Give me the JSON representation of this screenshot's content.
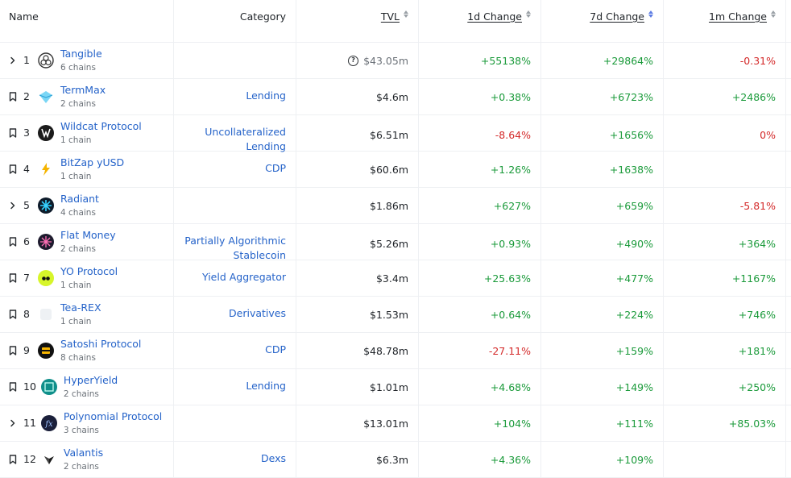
{
  "header": {
    "name": "Name",
    "category": "Category",
    "tvl": "TVL",
    "change_1d": "1d Change",
    "change_7d": "7d Change",
    "change_1m": "1m Change"
  },
  "rows": [
    {
      "rank": "1",
      "control": "expand",
      "name": "Tangible",
      "chains": "6 chains",
      "category": [
        "",
        ""
      ],
      "tvl": "$43.05m",
      "tvl_unknown": true,
      "d1": "+55138%",
      "d1c": "green",
      "d7": "+29864%",
      "d7c": "green",
      "m1": "-0.31%",
      "m1c": "red",
      "logo_color": "#ffffff",
      "logo_icon": "tangible-logo"
    },
    {
      "rank": "2",
      "control": "bookmark",
      "name": "TermMax",
      "chains": "2 chains",
      "category": [
        "Lending",
        ""
      ],
      "tvl": "$4.6m",
      "tvl_unknown": false,
      "d1": "+0.38%",
      "d1c": "green",
      "d7": "+6723%",
      "d7c": "green",
      "m1": "+2486%",
      "m1c": "green",
      "logo_color": "#5bc8f0",
      "logo_icon": "termmax-logo"
    },
    {
      "rank": "3",
      "control": "bookmark",
      "name": "Wildcat Protocol",
      "chains": "1 chain",
      "category": [
        "Uncollateralized",
        "Lending"
      ],
      "tvl": "$6.51m",
      "tvl_unknown": false,
      "d1": "-8.64%",
      "d1c": "red",
      "d7": "+1656%",
      "d7c": "green",
      "m1": "0%",
      "m1c": "red",
      "logo_color": "#1b1b1b",
      "logo_icon": "wildcat-logo"
    },
    {
      "rank": "4",
      "control": "bookmark",
      "name": "BitZap yUSD",
      "chains": "1 chain",
      "category": [
        "CDP",
        ""
      ],
      "tvl": "$60.6m",
      "tvl_unknown": false,
      "d1": "+1.26%",
      "d1c": "green",
      "d7": "+1638%",
      "d7c": "green",
      "m1": "",
      "m1c": "green",
      "logo_color": "#ffffff",
      "logo_icon": "bitzap-logo"
    },
    {
      "rank": "5",
      "control": "expand",
      "name": "Radiant",
      "chains": "4 chains",
      "category": [
        "",
        ""
      ],
      "tvl": "$1.86m",
      "tvl_unknown": false,
      "d1": "+627%",
      "d1c": "green",
      "d7": "+659%",
      "d7c": "green",
      "m1": "-5.81%",
      "m1c": "red",
      "logo_color": "#0d1b2a",
      "logo_icon": "radiant-logo"
    },
    {
      "rank": "6",
      "control": "bookmark",
      "name": "Flat Money",
      "chains": "2 chains",
      "category": [
        "Partially Algorithmic",
        "Stablecoin"
      ],
      "tvl": "$5.26m",
      "tvl_unknown": false,
      "d1": "+0.93%",
      "d1c": "green",
      "d7": "+490%",
      "d7c": "green",
      "m1": "+364%",
      "m1c": "green",
      "logo_color": "#1e1b2e",
      "logo_icon": "flatmoney-logo"
    },
    {
      "rank": "7",
      "control": "bookmark",
      "name": "YO Protocol",
      "chains": "1 chain",
      "category": [
        "Yield Aggregator",
        ""
      ],
      "tvl": "$3.4m",
      "tvl_unknown": false,
      "d1": "+25.63%",
      "d1c": "green",
      "d7": "+477%",
      "d7c": "green",
      "m1": "+1167%",
      "m1c": "green",
      "logo_color": "#d7f52a",
      "logo_icon": "yo-logo"
    },
    {
      "rank": "8",
      "control": "bookmark",
      "name": "Tea-REX",
      "chains": "1 chain",
      "category": [
        "Derivatives",
        ""
      ],
      "tvl": "$1.53m",
      "tvl_unknown": false,
      "d1": "+0.64%",
      "d1c": "green",
      "d7": "+224%",
      "d7c": "green",
      "m1": "+746%",
      "m1c": "green",
      "logo_color": "#f4f6f8",
      "logo_icon": "tearex-logo"
    },
    {
      "rank": "9",
      "control": "bookmark",
      "name": "Satoshi Protocol",
      "chains": "8 chains",
      "category": [
        "CDP",
        ""
      ],
      "tvl": "$48.78m",
      "tvl_unknown": false,
      "d1": "-27.11%",
      "d1c": "red",
      "d7": "+159%",
      "d7c": "green",
      "m1": "+181%",
      "m1c": "green",
      "logo_color": "#111111",
      "logo_icon": "satoshi-logo"
    },
    {
      "rank": "10",
      "control": "bookmark",
      "name": "HyperYield",
      "chains": "2 chains",
      "category": [
        "Lending",
        ""
      ],
      "tvl": "$1.01m",
      "tvl_unknown": false,
      "d1": "+4.68%",
      "d1c": "green",
      "d7": "+149%",
      "d7c": "green",
      "m1": "+250%",
      "m1c": "green",
      "logo_color": "#0f8f8a",
      "logo_icon": "hyperyield-logo"
    },
    {
      "rank": "11",
      "control": "expand",
      "name": "Polynomial Protocol",
      "chains": "3 chains",
      "category": [
        "",
        ""
      ],
      "tvl": "$13.01m",
      "tvl_unknown": false,
      "d1": "+104%",
      "d1c": "green",
      "d7": "+111%",
      "d7c": "green",
      "m1": "+85.03%",
      "m1c": "green",
      "logo_color": "#1a1f3a",
      "logo_icon": "polynomial-logo"
    },
    {
      "rank": "12",
      "control": "bookmark",
      "name": "Valantis",
      "chains": "2 chains",
      "category": [
        "Dexs",
        ""
      ],
      "tvl": "$6.3m",
      "tvl_unknown": false,
      "d1": "+4.36%",
      "d1c": "green",
      "d7": "+109%",
      "d7c": "green",
      "m1": "",
      "m1c": "green",
      "logo_color": "#ffffff",
      "logo_icon": "valantis-logo"
    }
  ]
}
